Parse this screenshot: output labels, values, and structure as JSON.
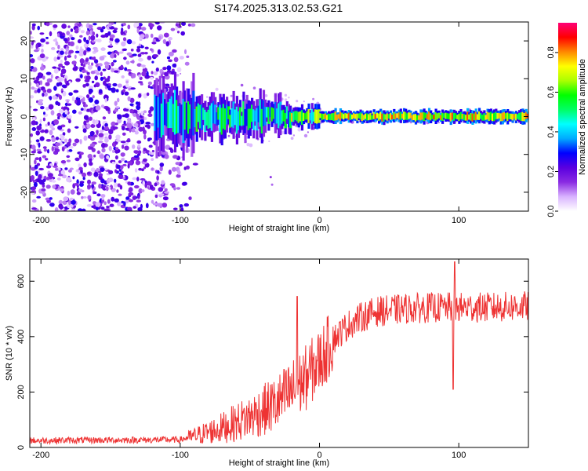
{
  "title": "S174.2025.313.02.53.G21",
  "chart_data": [
    {
      "type": "heatmap",
      "name": "spectrogram",
      "xlabel": "Height of straight line (km)",
      "ylabel": "Frequency (Hz)",
      "xlim": [
        -208,
        150
      ],
      "ylim": [
        -25,
        25
      ],
      "xticks": [
        -200,
        -100,
        0,
        100
      ],
      "yticks": [
        -20,
        -10,
        0,
        10,
        20
      ],
      "colorbar": {
        "label": "Normalized spectral amplitude",
        "range": [
          0,
          0.95
        ],
        "ticks": [
          0.0,
          0.2,
          0.4,
          0.6,
          0.8
        ],
        "tick_labels": [
          "0.0",
          "0.2",
          "0.4",
          "0.6",
          "0.8"
        ],
        "colors": [
          "#ffffff",
          "#d9b3ff",
          "#8a2be2",
          "#5a00e0",
          "#0000ff",
          "#00aaff",
          "#00ffff",
          "#00ff66",
          "#00ff00",
          "#aaff00",
          "#ffff00",
          "#ff8800",
          "#ff0000",
          "#ff0077"
        ]
      },
      "annotation": "noise scatter for x < -95 km; narrow carrier near 0 Hz rising to ~0.9 for x > -10 km"
    },
    {
      "type": "line",
      "name": "snr",
      "xlabel": "Height of straight line (km)",
      "ylabel": "SNR (10 * v/v)",
      "xlim": [
        -208,
        150
      ],
      "ylim": [
        0,
        680
      ],
      "xticks": [
        -200,
        -100,
        0,
        100
      ],
      "yticks": [
        0,
        200,
        400,
        600
      ],
      "color": "#ee3333",
      "trend": [
        [
          -208,
          25
        ],
        [
          -100,
          28
        ],
        [
          -90,
          40
        ],
        [
          -70,
          70
        ],
        [
          -50,
          110
        ],
        [
          -30,
          160
        ],
        [
          -20,
          200
        ],
        [
          -10,
          250
        ],
        [
          0,
          310
        ],
        [
          10,
          390
        ],
        [
          20,
          440
        ],
        [
          30,
          470
        ],
        [
          40,
          490
        ],
        [
          60,
          500
        ],
        [
          80,
          505
        ],
        [
          100,
          505
        ],
        [
          120,
          505
        ],
        [
          150,
          510
        ]
      ],
      "spikes": [
        {
          "x": -16,
          "y": 545
        },
        {
          "x": 97,
          "y": 670
        },
        {
          "x": 96,
          "y": 210
        }
      ]
    }
  ]
}
